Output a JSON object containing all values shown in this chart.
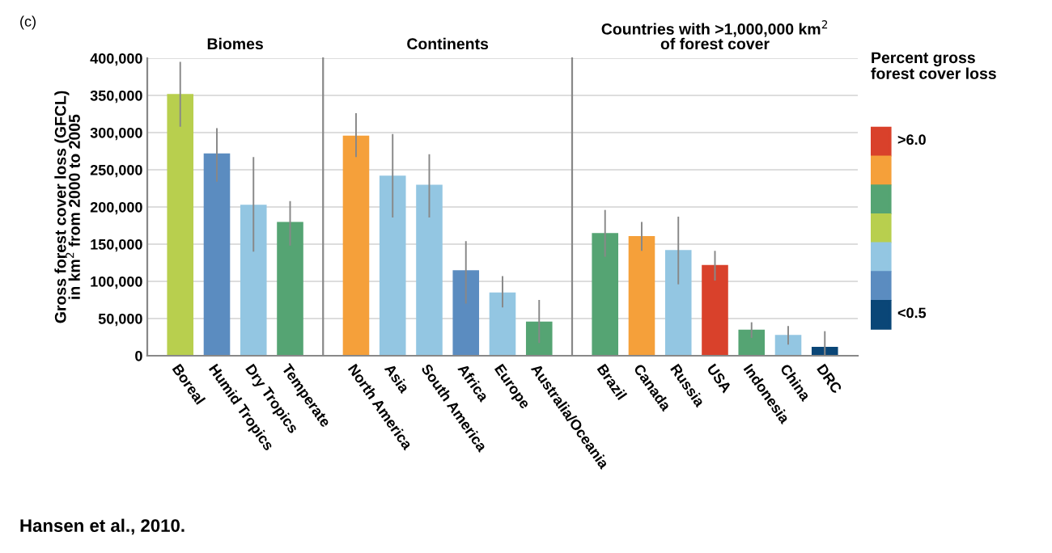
{
  "chart_data": [
    {
      "type": "bar",
      "title": "Biomes",
      "ylabel": "Gross forest cover loss (GFCL)\nin km$^{2}$ from 2000 to 2005",
      "annotations": [
        "(c)",
        "Hansen et al., 2010."
      ],
      "categories": [
        "Boreal",
        "Humid Tropics",
        "Dry Tropics",
        "Temperate"
      ],
      "values": [
        352000,
        272000,
        203000,
        180000
      ],
      "colors": [
        "#b8cf4e",
        "#5b8cc0",
        "#93c6e2",
        "#55a473"
      ],
      "errors": [
        [
          308000,
          395000
        ],
        [
          234000,
          306000
        ],
        [
          140000,
          267000
        ],
        [
          148000,
          208000
        ]
      ],
      "ylim": [
        0,
        400000
      ],
      "yticks": [
        0,
        {
          "value": 50000,
          "label": "50,000"
        },
        {
          "value": 100000,
          "label": "100,000"
        },
        {
          "value": 150000,
          "label": "150,000"
        },
        {
          "value": 200000,
          "label": "200,000"
        },
        {
          "value": 250000,
          "label": "250,000"
        },
        {
          "value": 300000,
          "label": "300,000"
        },
        {
          "value": 350000,
          "label": "350,000"
        },
        {
          "value": 400000,
          "label": "400,000"
        }
      ],
      "grid": "y"
    },
    {
      "type": "bar",
      "title": "Continents",
      "tick_labels": "x",
      "categories": [
        "North America",
        "Asia",
        "South America",
        "Africa",
        "Europe",
        "Australia/Oceania"
      ],
      "values": [
        296000,
        242000,
        230000,
        115000,
        85000,
        46000
      ],
      "colors": [
        "#f5a03a",
        "#93c6e2",
        "#93c6e2",
        "#5b8cc0",
        "#93c6e2",
        "#55a473"
      ],
      "errors": [
        [
          267000,
          326000
        ],
        [
          186000,
          298000
        ],
        [
          186000,
          271000
        ],
        [
          70000,
          154000
        ],
        [
          65000,
          107000
        ],
        [
          17000,
          75000
        ]
      ],
      "ylim": [
        0,
        400000
      ],
      "yticks": [
        0,
        50000,
        100000,
        150000,
        200000,
        250000,
        300000,
        350000,
        400000
      ],
      "grid": "y"
    },
    {
      "type": "bar",
      "title": "Countries with >1,000,000 km$^{2}$\nof forest cover",
      "tick_labels": "x",
      "categories": [
        "Brazil",
        "Canada",
        "Russia",
        "USA",
        "Indonesia",
        "China",
        "DRC"
      ],
      "values": [
        165000,
        161000,
        142000,
        122000,
        35000,
        28000,
        12000
      ],
      "colors": [
        "#55a473",
        "#f5a03a",
        "#93c6e2",
        "#d9412b",
        "#55a473",
        "#93c6e2",
        "#0a4677"
      ],
      "errors": [
        [
          133000,
          196000
        ],
        [
          141000,
          180000
        ],
        [
          96000,
          187000
        ],
        [
          101000,
          141000
        ],
        [
          24000,
          45000
        ],
        [
          15000,
          40000
        ],
        [
          0,
          33000
        ]
      ],
      "ylim": [
        0,
        400000
      ],
      "yticks": [
        0,
        50000,
        100000,
        150000,
        200000,
        250000,
        300000,
        350000,
        400000
      ],
      "grid": "y"
    },
    {
      "type": "other",
      "title": "Percent gross\nforest cover loss",
      "categories": [
        ">6.0",
        null,
        null,
        null,
        null,
        null,
        "<0.5"
      ],
      "colors": [
        "#d9412b",
        "#f5a03a",
        "#55a473",
        "#b8cf4e",
        "#93c6e2",
        "#5b8cc0",
        "#0a4677"
      ]
    }
  ]
}
